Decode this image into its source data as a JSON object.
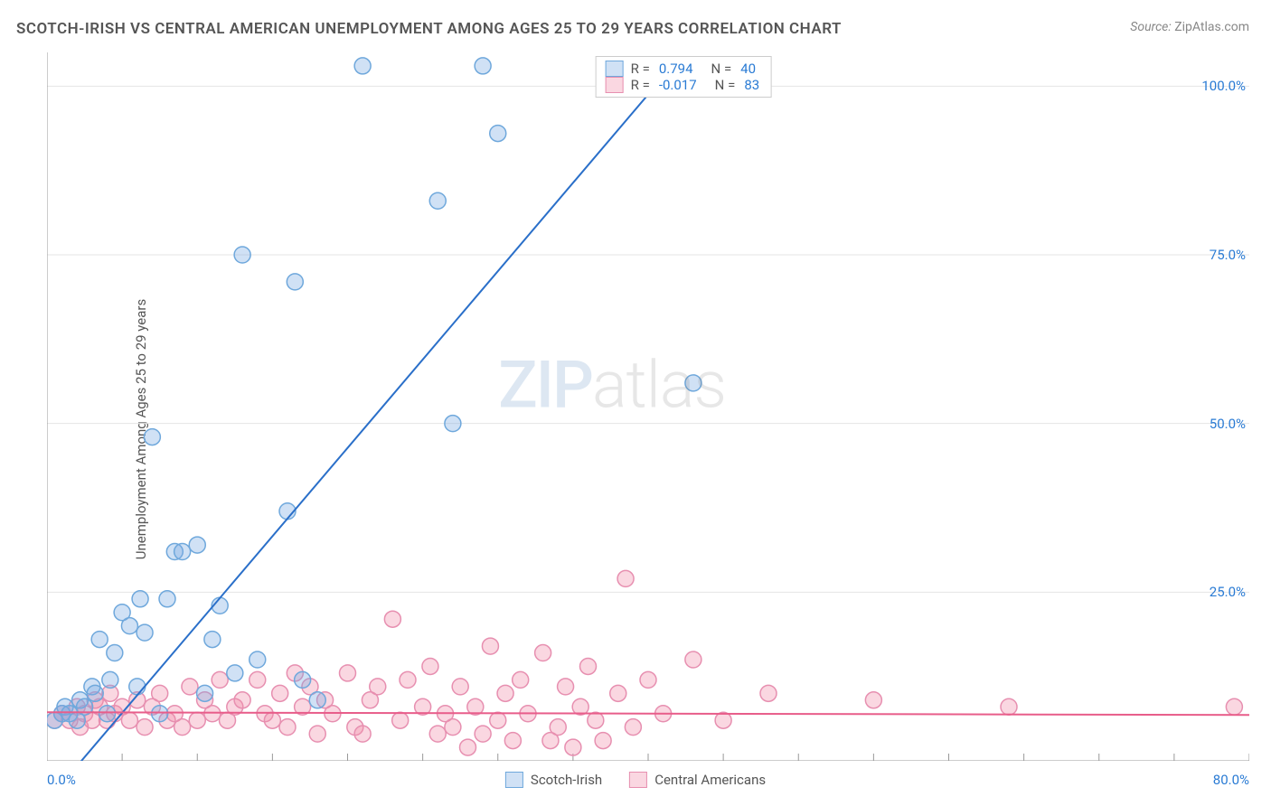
{
  "title": "SCOTCH-IRISH VS CENTRAL AMERICAN UNEMPLOYMENT AMONG AGES 25 TO 29 YEARS CORRELATION CHART",
  "source_label": "Source:",
  "source_value": "ZipAtlas.com",
  "ylabel": "Unemployment Among Ages 25 to 29 years",
  "watermark_a": "ZIP",
  "watermark_b": "atlas",
  "chart": {
    "type": "scatter",
    "xlim": [
      0,
      80
    ],
    "ylim": [
      0,
      105
    ],
    "x_tick_labels": [
      "0.0%",
      "80.0%"
    ],
    "y_tick_labels": [
      "25.0%",
      "50.0%",
      "75.0%",
      "100.0%"
    ],
    "y_tick_values": [
      25,
      50,
      75,
      100
    ],
    "x_minor_ticks": [
      5,
      10,
      15,
      20,
      25,
      30,
      35,
      40,
      45,
      50,
      55,
      60,
      65,
      70,
      75,
      80
    ],
    "grid_color": "#e5e5e5",
    "axis_color": "#999",
    "background_color": "#ffffff",
    "marker_radius": 9,
    "marker_stroke_width": 1.5,
    "line_width": 2,
    "series": [
      {
        "name": "Scotch-Irish",
        "color_fill": "rgba(120,170,225,0.35)",
        "color_stroke": "#6fa8dc",
        "line_color": "#2a6fc9",
        "R": "0.794",
        "N": "40",
        "trend": {
          "x1": 0,
          "y1": -6,
          "x2": 42,
          "y2": 104
        },
        "points": [
          [
            0.5,
            6
          ],
          [
            1,
            7
          ],
          [
            1.2,
            8
          ],
          [
            1.5,
            7
          ],
          [
            2,
            6
          ],
          [
            2.2,
            9
          ],
          [
            2.5,
            8
          ],
          [
            3,
            11
          ],
          [
            3.2,
            10
          ],
          [
            3.5,
            18
          ],
          [
            4,
            7
          ],
          [
            4.2,
            12
          ],
          [
            4.5,
            16
          ],
          [
            5,
            22
          ],
          [
            5.5,
            20
          ],
          [
            6,
            11
          ],
          [
            6.2,
            24
          ],
          [
            6.5,
            19
          ],
          [
            7,
            48
          ],
          [
            7.5,
            7
          ],
          [
            8,
            24
          ],
          [
            8.5,
            31
          ],
          [
            9,
            31
          ],
          [
            10,
            32
          ],
          [
            10.5,
            10
          ],
          [
            11,
            18
          ],
          [
            11.5,
            23
          ],
          [
            12.5,
            13
          ],
          [
            13,
            75
          ],
          [
            14,
            15
          ],
          [
            16,
            37
          ],
          [
            16.5,
            71
          ],
          [
            17,
            12
          ],
          [
            18,
            9
          ],
          [
            21,
            103
          ],
          [
            26,
            83
          ],
          [
            27,
            50
          ],
          [
            29,
            103
          ],
          [
            30,
            93
          ],
          [
            43,
            56
          ]
        ]
      },
      {
        "name": "Central Americans",
        "color_fill": "rgba(240,140,170,0.35)",
        "color_stroke": "#e78fb0",
        "line_color": "#e85d8a",
        "R": "-0.017",
        "N": "83",
        "trend": {
          "x1": 0,
          "y1": 7.2,
          "x2": 80,
          "y2": 6.8
        },
        "points": [
          [
            0.5,
            6
          ],
          [
            1,
            7
          ],
          [
            1.5,
            6
          ],
          [
            2,
            8
          ],
          [
            2.2,
            5
          ],
          [
            2.5,
            7
          ],
          [
            3,
            6
          ],
          [
            3.2,
            9
          ],
          [
            3.5,
            8
          ],
          [
            4,
            6
          ],
          [
            4.2,
            10
          ],
          [
            4.5,
            7
          ],
          [
            5,
            8
          ],
          [
            5.5,
            6
          ],
          [
            6,
            9
          ],
          [
            6.5,
            5
          ],
          [
            7,
            8
          ],
          [
            7.5,
            10
          ],
          [
            8,
            6
          ],
          [
            8.5,
            7
          ],
          [
            9,
            5
          ],
          [
            9.5,
            11
          ],
          [
            10,
            6
          ],
          [
            10.5,
            9
          ],
          [
            11,
            7
          ],
          [
            11.5,
            12
          ],
          [
            12,
            6
          ],
          [
            12.5,
            8
          ],
          [
            13,
            9
          ],
          [
            14,
            12
          ],
          [
            14.5,
            7
          ],
          [
            15,
            6
          ],
          [
            15.5,
            10
          ],
          [
            16,
            5
          ],
          [
            16.5,
            13
          ],
          [
            17,
            8
          ],
          [
            17.5,
            11
          ],
          [
            18,
            4
          ],
          [
            18.5,
            9
          ],
          [
            19,
            7
          ],
          [
            20,
            13
          ],
          [
            20.5,
            5
          ],
          [
            21,
            4
          ],
          [
            21.5,
            9
          ],
          [
            22,
            11
          ],
          [
            23,
            21
          ],
          [
            23.5,
            6
          ],
          [
            24,
            12
          ],
          [
            25,
            8
          ],
          [
            25.5,
            14
          ],
          [
            26,
            4
          ],
          [
            26.5,
            7
          ],
          [
            27,
            5
          ],
          [
            27.5,
            11
          ],
          [
            28,
            2
          ],
          [
            28.5,
            8
          ],
          [
            29,
            4
          ],
          [
            29.5,
            17
          ],
          [
            30,
            6
          ],
          [
            30.5,
            10
          ],
          [
            31,
            3
          ],
          [
            31.5,
            12
          ],
          [
            32,
            7
          ],
          [
            33,
            16
          ],
          [
            33.5,
            3
          ],
          [
            34,
            5
          ],
          [
            34.5,
            11
          ],
          [
            35,
            2
          ],
          [
            35.5,
            8
          ],
          [
            36,
            14
          ],
          [
            36.5,
            6
          ],
          [
            37,
            3
          ],
          [
            38,
            10
          ],
          [
            38.5,
            27
          ],
          [
            39,
            5
          ],
          [
            40,
            12
          ],
          [
            41,
            7
          ],
          [
            43,
            15
          ],
          [
            45,
            6
          ],
          [
            48,
            10
          ],
          [
            55,
            9
          ],
          [
            64,
            8
          ],
          [
            79,
            8
          ]
        ]
      }
    ]
  },
  "top_legend_rows": [
    {
      "series_idx": 0,
      "R_label": "R =",
      "N_label": "N ="
    },
    {
      "series_idx": 1,
      "R_label": "R =",
      "N_label": "N ="
    }
  ]
}
